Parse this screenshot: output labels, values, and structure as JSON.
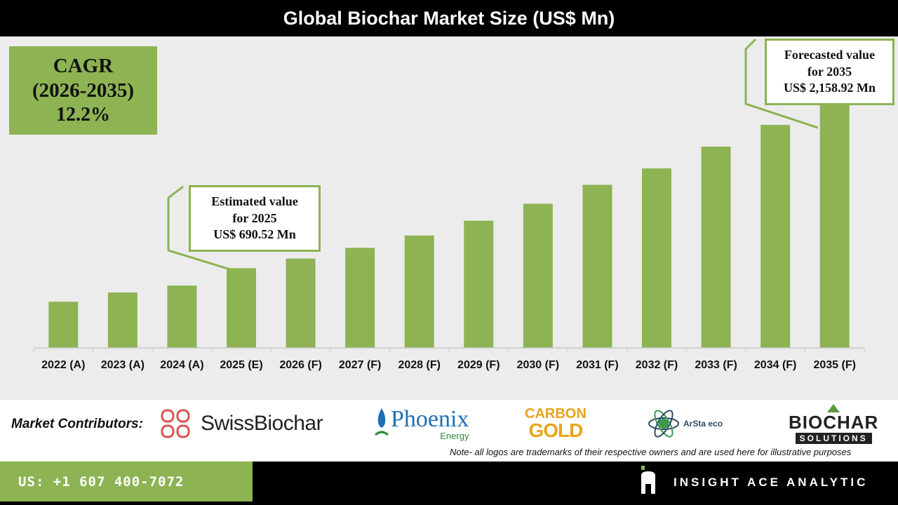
{
  "header": {
    "title": "Global Biochar Market Size (US$ Mn)"
  },
  "cagr": {
    "line1": "CAGR",
    "line2": "(2026-2035)",
    "line3": "12.2%"
  },
  "callout_estimated": {
    "line1": "Estimated value",
    "line2": "for 2025",
    "line3": "US$ 690.52 Mn"
  },
  "callout_forecast": {
    "line1": "Forecasted value",
    "line2": "for 2035",
    "line3": "US$ 2,158.92 Mn"
  },
  "colors": {
    "bar": "#8db353",
    "background": "#ececec",
    "title_bar": "#000000"
  },
  "chart_data": {
    "type": "bar",
    "title": "Global Biochar Market Size (US$ Mn)",
    "categories": [
      "2022 (A)",
      "2023 (A)",
      "2024 (A)",
      "2025 (E)",
      "2026 (F)",
      "2027 (F)",
      "2028 (F)",
      "2029 (F)",
      "2030 (F)",
      "2031 (F)",
      "2032 (F)",
      "2033 (F)",
      "2034 (F)",
      "2035 (F)"
    ],
    "values": [
      400,
      480,
      540,
      690.52,
      774,
      867,
      974,
      1102,
      1249,
      1413,
      1555,
      1744,
      1932,
      2158.92
    ],
    "ylim": [
      0,
      2200
    ],
    "grid": false,
    "legend": "none"
  },
  "contributors": {
    "label": "Market Contributors:",
    "logos": [
      "SwissBiochar",
      "Phoenix",
      "Energy",
      "CARBON",
      "GOLD",
      "ArSta eco",
      "BIOCHAR",
      "SOLUTIONS"
    ],
    "note": "Note- all logos are trademarks of their respective owners and are used here for illustrative purposes"
  },
  "footer": {
    "phone": "US: +1 607 400-7072",
    "brand": "INSIGHT ACE ANALYTIC"
  }
}
